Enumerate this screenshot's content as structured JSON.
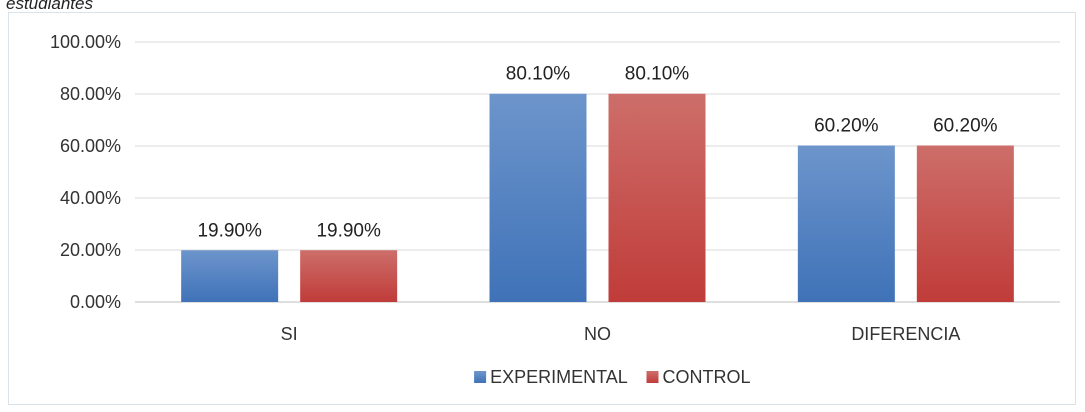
{
  "caption": "estudiantes",
  "chart_data": {
    "type": "bar",
    "categories": [
      "SI",
      "NO",
      "DIFERENCIA"
    ],
    "series": [
      {
        "name": "EXPERIMENTAL",
        "values": [
          19.9,
          80.1,
          60.2
        ],
        "labels": [
          "19.90%",
          "80.10%",
          "60.20%"
        ],
        "color": "#4a7fc1"
      },
      {
        "name": "CONTROL",
        "values": [
          19.9,
          80.1,
          60.2
        ],
        "labels": [
          "19.90%",
          "80.10%",
          "60.20%"
        ],
        "color": "#c9514e"
      }
    ],
    "yticks": [
      "0.00%",
      "20.00%",
      "40.00%",
      "60.00%",
      "80.00%",
      "100.00%"
    ],
    "ylim": [
      0,
      100
    ],
    "grid": true,
    "legend_position": "bottom"
  }
}
